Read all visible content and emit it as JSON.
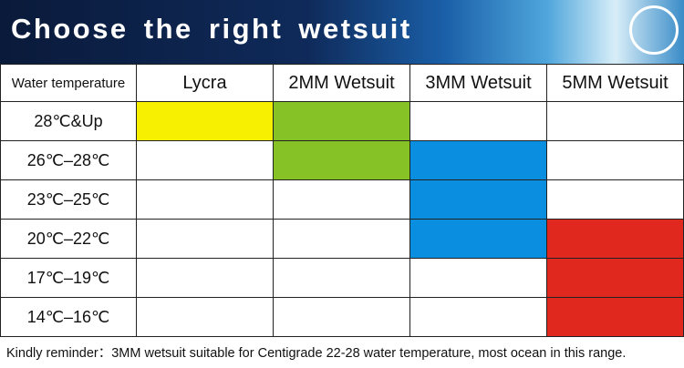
{
  "header": {
    "title": "Choose the right wetsuit"
  },
  "table": {
    "columns": [
      "Water temperature",
      "Lycra",
      "2MM Wetsuit",
      "3MM Wetsuit",
      "5MM Wetsuit"
    ],
    "rows": [
      {
        "label": "28℃&Up",
        "cells": [
          "#f7f000",
          "#86c226",
          null,
          null
        ]
      },
      {
        "label": "26℃–28℃",
        "cells": [
          null,
          "#86c226",
          "#0a8fe0",
          null
        ]
      },
      {
        "label": "23℃–25℃",
        "cells": [
          null,
          null,
          "#0a8fe0",
          null
        ]
      },
      {
        "label": "20℃–22℃",
        "cells": [
          null,
          null,
          "#0a8fe0",
          "#e0281e"
        ]
      },
      {
        "label": "17℃–19℃",
        "cells": [
          null,
          null,
          null,
          "#e0281e"
        ]
      },
      {
        "label": "14℃–16℃",
        "cells": [
          null,
          null,
          null,
          "#e0281e"
        ]
      }
    ]
  },
  "footer": {
    "note": "Kindly reminder：3MM wetsuit suitable for Centigrade 22-28 water temperature, most ocean in this range."
  }
}
